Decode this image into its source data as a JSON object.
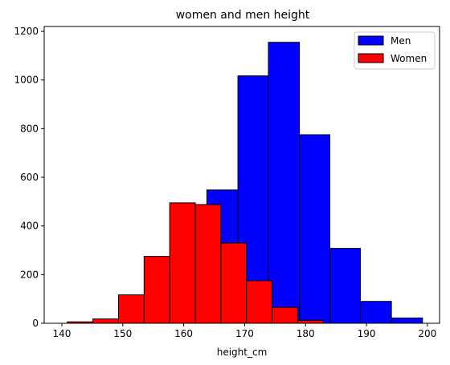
{
  "chart_data": {
    "type": "bar",
    "title": "women and men height",
    "xlabel": "height_cm",
    "ylabel": "",
    "xlim": [
      137.1,
      202.0
    ],
    "ylim": [
      0,
      1220
    ],
    "xticks": [
      140,
      150,
      160,
      170,
      180,
      190,
      200
    ],
    "yticks": [
      0,
      200,
      400,
      600,
      800,
      1000,
      1200
    ],
    "grid": false,
    "legend_position": "top-right",
    "series": [
      {
        "name": "Men",
        "color": "#0000ff",
        "edge_color": "#000000",
        "bins": [
          {
            "x0": 163.8,
            "x1": 168.9,
            "value": 548
          },
          {
            "x0": 168.9,
            "x1": 173.9,
            "value": 1017
          },
          {
            "x0": 173.9,
            "x1": 179.0,
            "value": 1155
          },
          {
            "x0": 179.0,
            "x1": 184.0,
            "value": 775
          },
          {
            "x0": 184.0,
            "x1": 189.0,
            "value": 308
          },
          {
            "x0": 189.0,
            "x1": 194.1,
            "value": 90
          },
          {
            "x0": 194.1,
            "x1": 199.2,
            "value": 22
          }
        ]
      },
      {
        "name": "Women",
        "color": "#ff0000",
        "edge_color": "#000000",
        "bins": [
          {
            "x0": 140.9,
            "x1": 145.1,
            "value": 6
          },
          {
            "x0": 145.1,
            "x1": 149.3,
            "value": 18
          },
          {
            "x0": 149.3,
            "x1": 153.5,
            "value": 117
          },
          {
            "x0": 153.5,
            "x1": 157.7,
            "value": 275
          },
          {
            "x0": 157.7,
            "x1": 161.9,
            "value": 495
          },
          {
            "x0": 161.9,
            "x1": 166.1,
            "value": 488
          },
          {
            "x0": 166.1,
            "x1": 170.3,
            "value": 330
          },
          {
            "x0": 170.3,
            "x1": 174.5,
            "value": 175
          },
          {
            "x0": 174.5,
            "x1": 178.7,
            "value": 66
          },
          {
            "x0": 178.7,
            "x1": 182.9,
            "value": 12
          }
        ]
      }
    ]
  }
}
